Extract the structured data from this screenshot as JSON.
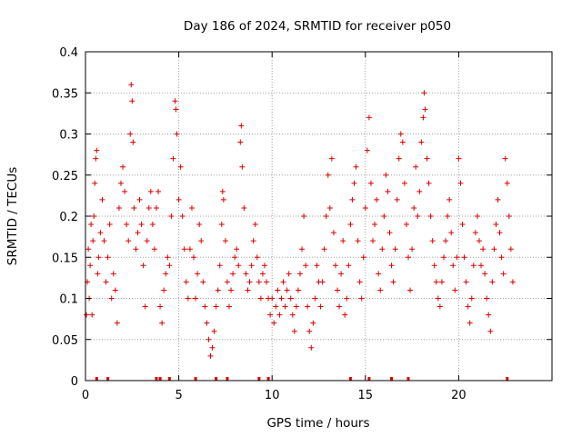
{
  "chart_data": {
    "type": "scatter",
    "title": "Day 186 of 2024, SRMTID for receiver p050",
    "xlabel": "GPS time / hours",
    "ylabel": "SRMTID / TECUs",
    "xlim": [
      0,
      25
    ],
    "ylim": [
      0,
      0.4
    ],
    "xticks": [
      0,
      5,
      10,
      15,
      20
    ],
    "xtick_labels": [
      "0",
      "5",
      "10",
      "15",
      "20"
    ],
    "yticks": [
      0,
      0.05,
      0.1,
      0.15,
      0.2,
      0.25,
      0.3,
      0.35,
      0.4
    ],
    "ytick_labels": [
      "0",
      "0.05",
      "0.1",
      "0.15",
      "0.2",
      "0.25",
      "0.3",
      "0.35",
      "0.4"
    ],
    "grid": true,
    "marker": "plus",
    "color": "#e00000",
    "x_data_range": [
      0,
      22.9
    ],
    "y_typical_range": [
      0.05,
      0.25
    ],
    "series": [
      {
        "name": "SRMTID",
        "points": [
          [
            0.05,
            0.08
          ],
          [
            0.1,
            0.12
          ],
          [
            0.15,
            0.16
          ],
          [
            0.2,
            0.1
          ],
          [
            0.25,
            0.14
          ],
          [
            0.3,
            0.19
          ],
          [
            0.35,
            0.08
          ],
          [
            0.4,
            0.17
          ],
          [
            0.45,
            0.2
          ],
          [
            0.5,
            0.24
          ],
          [
            0.55,
            0.27
          ],
          [
            0.6,
            0.28
          ],
          [
            0.65,
            0.13
          ],
          [
            0.7,
            0.15
          ],
          [
            0.8,
            0.18
          ],
          [
            0.9,
            0.22
          ],
          [
            1.0,
            0.17
          ],
          [
            1.1,
            0.12
          ],
          [
            1.2,
            0.15
          ],
          [
            1.3,
            0.19
          ],
          [
            1.4,
            0.1
          ],
          [
            1.5,
            0.13
          ],
          [
            1.6,
            0.11
          ],
          [
            1.7,
            0.07
          ],
          [
            1.8,
            0.21
          ],
          [
            1.9,
            0.24
          ],
          [
            2.0,
            0.26
          ],
          [
            2.1,
            0.23
          ],
          [
            2.2,
            0.19
          ],
          [
            2.3,
            0.17
          ],
          [
            2.4,
            0.3
          ],
          [
            2.45,
            0.36
          ],
          [
            2.5,
            0.34
          ],
          [
            2.55,
            0.29
          ],
          [
            2.6,
            0.21
          ],
          [
            2.7,
            0.16
          ],
          [
            2.8,
            0.18
          ],
          [
            2.9,
            0.22
          ],
          [
            3.0,
            0.19
          ],
          [
            3.1,
            0.14
          ],
          [
            3.2,
            0.09
          ],
          [
            3.3,
            0.17
          ],
          [
            3.4,
            0.21
          ],
          [
            3.5,
            0.23
          ],
          [
            3.6,
            0.19
          ],
          [
            3.7,
            0.16
          ],
          [
            3.8,
            0.21
          ],
          [
            3.9,
            0.23
          ],
          [
            4.0,
            0.09
          ],
          [
            4.1,
            0.07
          ],
          [
            4.2,
            0.11
          ],
          [
            4.3,
            0.13
          ],
          [
            4.4,
            0.15
          ],
          [
            4.5,
            0.14
          ],
          [
            4.6,
            0.2
          ],
          [
            4.7,
            0.27
          ],
          [
            4.8,
            0.34
          ],
          [
            4.85,
            0.33
          ],
          [
            4.9,
            0.3
          ],
          [
            5.0,
            0.22
          ],
          [
            5.1,
            0.26
          ],
          [
            5.2,
            0.2
          ],
          [
            5.3,
            0.16
          ],
          [
            5.4,
            0.12
          ],
          [
            5.5,
            0.1
          ],
          [
            5.6,
            0.16
          ],
          [
            5.7,
            0.21
          ],
          [
            5.8,
            0.15
          ],
          [
            5.9,
            0.1
          ],
          [
            6.0,
            0.13
          ],
          [
            6.1,
            0.19
          ],
          [
            6.2,
            0.17
          ],
          [
            6.3,
            0.12
          ],
          [
            6.4,
            0.09
          ],
          [
            6.5,
            0.07
          ],
          [
            6.6,
            0.05
          ],
          [
            6.7,
            0.03
          ],
          [
            6.8,
            0.04
          ],
          [
            6.9,
            0.06
          ],
          [
            7.0,
            0.09
          ],
          [
            7.1,
            0.11
          ],
          [
            7.2,
            0.14
          ],
          [
            7.3,
            0.19
          ],
          [
            7.35,
            0.23
          ],
          [
            7.4,
            0.22
          ],
          [
            7.5,
            0.17
          ],
          [
            7.6,
            0.12
          ],
          [
            7.7,
            0.09
          ],
          [
            7.8,
            0.11
          ],
          [
            7.9,
            0.13
          ],
          [
            8.0,
            0.15
          ],
          [
            8.1,
            0.16
          ],
          [
            8.2,
            0.14
          ],
          [
            8.3,
            0.29
          ],
          [
            8.35,
            0.31
          ],
          [
            8.4,
            0.26
          ],
          [
            8.5,
            0.21
          ],
          [
            8.6,
            0.13
          ],
          [
            8.7,
            0.11
          ],
          [
            8.8,
            0.12
          ],
          [
            8.9,
            0.14
          ],
          [
            9.0,
            0.17
          ],
          [
            9.1,
            0.19
          ],
          [
            9.2,
            0.15
          ],
          [
            9.3,
            0.12
          ],
          [
            9.4,
            0.1
          ],
          [
            9.5,
            0.13
          ],
          [
            9.6,
            0.14
          ],
          [
            9.7,
            0.12
          ],
          [
            9.8,
            0.1
          ],
          [
            9.9,
            0.08
          ],
          [
            10.0,
            0.1
          ],
          [
            10.1,
            0.07
          ],
          [
            10.2,
            0.09
          ],
          [
            10.3,
            0.11
          ],
          [
            10.4,
            0.08
          ],
          [
            10.5,
            0.1
          ],
          [
            10.6,
            0.12
          ],
          [
            10.7,
            0.09
          ],
          [
            10.8,
            0.11
          ],
          [
            10.9,
            0.13
          ],
          [
            11.0,
            0.1
          ],
          [
            11.1,
            0.08
          ],
          [
            11.2,
            0.06
          ],
          [
            11.3,
            0.09
          ],
          [
            11.4,
            0.11
          ],
          [
            11.5,
            0.13
          ],
          [
            11.6,
            0.16
          ],
          [
            11.7,
            0.2
          ],
          [
            11.8,
            0.14
          ],
          [
            11.9,
            0.09
          ],
          [
            12.0,
            0.06
          ],
          [
            12.1,
            0.04
          ],
          [
            12.2,
            0.07
          ],
          [
            12.3,
            0.1
          ],
          [
            12.4,
            0.14
          ],
          [
            12.5,
            0.12
          ],
          [
            12.6,
            0.09
          ],
          [
            12.7,
            0.12
          ],
          [
            12.8,
            0.16
          ],
          [
            12.9,
            0.2
          ],
          [
            13.0,
            0.25
          ],
          [
            13.1,
            0.21
          ],
          [
            13.2,
            0.27
          ],
          [
            13.3,
            0.18
          ],
          [
            13.4,
            0.14
          ],
          [
            13.5,
            0.11
          ],
          [
            13.6,
            0.09
          ],
          [
            13.7,
            0.13
          ],
          [
            13.8,
            0.17
          ],
          [
            13.9,
            0.08
          ],
          [
            14.0,
            0.1
          ],
          [
            14.1,
            0.14
          ],
          [
            14.2,
            0.19
          ],
          [
            14.3,
            0.22
          ],
          [
            14.4,
            0.24
          ],
          [
            14.5,
            0.26
          ],
          [
            14.6,
            0.17
          ],
          [
            14.7,
            0.12
          ],
          [
            14.8,
            0.1
          ],
          [
            14.9,
            0.15
          ],
          [
            15.0,
            0.21
          ],
          [
            15.1,
            0.28
          ],
          [
            15.2,
            0.32
          ],
          [
            15.3,
            0.24
          ],
          [
            15.4,
            0.17
          ],
          [
            15.5,
            0.19
          ],
          [
            15.6,
            0.22
          ],
          [
            15.7,
            0.13
          ],
          [
            15.8,
            0.11
          ],
          [
            15.9,
            0.16
          ],
          [
            16.0,
            0.2
          ],
          [
            16.1,
            0.25
          ],
          [
            16.2,
            0.23
          ],
          [
            16.3,
            0.18
          ],
          [
            16.4,
            0.14
          ],
          [
            16.5,
            0.12
          ],
          [
            16.6,
            0.16
          ],
          [
            16.7,
            0.22
          ],
          [
            16.8,
            0.27
          ],
          [
            16.9,
            0.3
          ],
          [
            17.0,
            0.29
          ],
          [
            17.1,
            0.24
          ],
          [
            17.2,
            0.19
          ],
          [
            17.3,
            0.15
          ],
          [
            17.4,
            0.11
          ],
          [
            17.5,
            0.16
          ],
          [
            17.6,
            0.21
          ],
          [
            17.7,
            0.26
          ],
          [
            17.8,
            0.2
          ],
          [
            17.9,
            0.23
          ],
          [
            18.0,
            0.29
          ],
          [
            18.1,
            0.32
          ],
          [
            18.15,
            0.35
          ],
          [
            18.2,
            0.33
          ],
          [
            18.3,
            0.27
          ],
          [
            18.4,
            0.24
          ],
          [
            18.5,
            0.2
          ],
          [
            18.6,
            0.17
          ],
          [
            18.7,
            0.14
          ],
          [
            18.8,
            0.12
          ],
          [
            18.9,
            0.1
          ],
          [
            19.0,
            0.09
          ],
          [
            19.1,
            0.12
          ],
          [
            19.2,
            0.15
          ],
          [
            19.3,
            0.17
          ],
          [
            19.4,
            0.2
          ],
          [
            19.5,
            0.22
          ],
          [
            19.6,
            0.18
          ],
          [
            19.7,
            0.14
          ],
          [
            19.8,
            0.11
          ],
          [
            19.9,
            0.15
          ],
          [
            20.0,
            0.27
          ],
          [
            20.1,
            0.24
          ],
          [
            20.2,
            0.19
          ],
          [
            20.3,
            0.15
          ],
          [
            20.4,
            0.12
          ],
          [
            20.5,
            0.09
          ],
          [
            20.6,
            0.07
          ],
          [
            20.7,
            0.1
          ],
          [
            20.8,
            0.14
          ],
          [
            20.9,
            0.18
          ],
          [
            21.0,
            0.2
          ],
          [
            21.1,
            0.17
          ],
          [
            21.2,
            0.14
          ],
          [
            21.3,
            0.16
          ],
          [
            21.4,
            0.13
          ],
          [
            21.5,
            0.1
          ],
          [
            21.6,
            0.08
          ],
          [
            21.7,
            0.06
          ],
          [
            21.8,
            0.12
          ],
          [
            21.9,
            0.16
          ],
          [
            22.0,
            0.19
          ],
          [
            22.1,
            0.22
          ],
          [
            22.2,
            0.18
          ],
          [
            22.3,
            0.15
          ],
          [
            22.4,
            0.13
          ],
          [
            22.5,
            0.27
          ],
          [
            22.6,
            0.24
          ],
          [
            22.7,
            0.2
          ],
          [
            22.8,
            0.16
          ],
          [
            22.9,
            0.12
          ]
        ]
      }
    ],
    "gap_markers_x": [
      0.6,
      1.2,
      3.8,
      4.0,
      4.5,
      5.9,
      7.0,
      7.6,
      9.3,
      9.8,
      14.2,
      15.2,
      16.4,
      17.3,
      22.6
    ]
  }
}
